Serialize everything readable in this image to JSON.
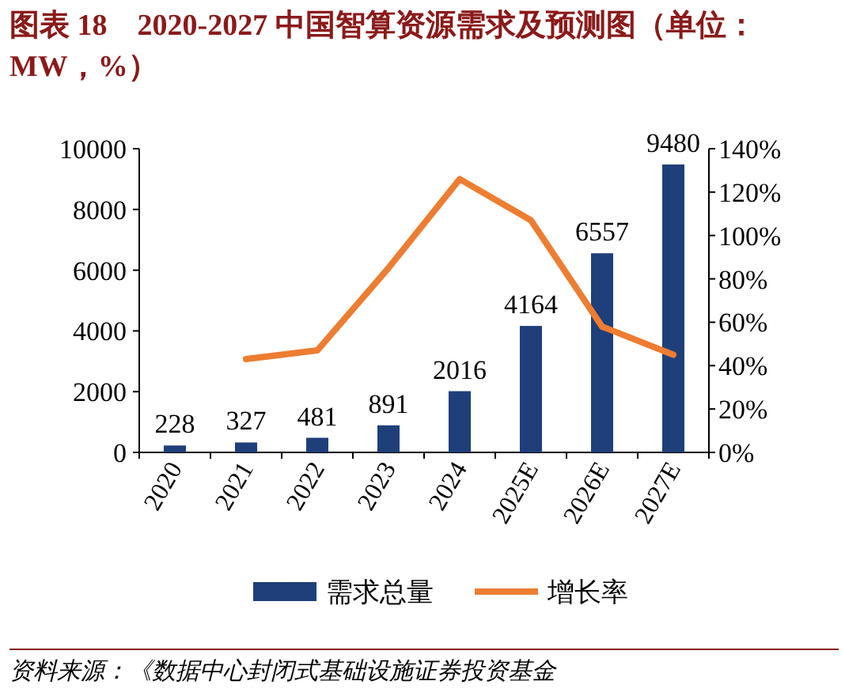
{
  "chart_data": {
    "type": "bar",
    "title": "图表 18　2020-2027 中国智算资源需求及预测图（单位：MW，%）",
    "categories": [
      "2020",
      "2021",
      "2022",
      "2023",
      "2024",
      "2025E",
      "2026E",
      "2027E"
    ],
    "series": [
      {
        "name": "需求总量",
        "color": "#1f3f7a",
        "values": [
          228,
          327,
          481,
          891,
          2016,
          4164,
          6557,
          9480
        ],
        "value_labels": [
          "228",
          "327",
          "481",
          "891",
          "2016",
          "4164",
          "6557",
          "9480"
        ]
      },
      {
        "name": "增长率",
        "type": "line",
        "axis": "y2",
        "color": "#ed7d31",
        "values": [
          null,
          43,
          47,
          85,
          126,
          107,
          58,
          45
        ]
      }
    ],
    "ylim": [
      0,
      10000
    ],
    "yticks": [
      0,
      2000,
      4000,
      6000,
      8000,
      10000
    ],
    "y2lim": [
      0,
      140
    ],
    "y2ticks": [
      {
        "value": 0,
        "label": "0%"
      },
      {
        "value": 20,
        "label": "20%"
      },
      {
        "value": 40,
        "label": "40%"
      },
      {
        "value": 60,
        "label": "60%"
      },
      {
        "value": 80,
        "label": "80%"
      },
      {
        "value": 100,
        "label": "100%"
      },
      {
        "value": 120,
        "label": "120%"
      },
      {
        "value": 140,
        "label": "140%"
      }
    ],
    "legend": "bottom",
    "grid": false,
    "annotations": [
      "资料来源：《数据中心封闭式基础设施证券投资基金"
    ]
  }
}
